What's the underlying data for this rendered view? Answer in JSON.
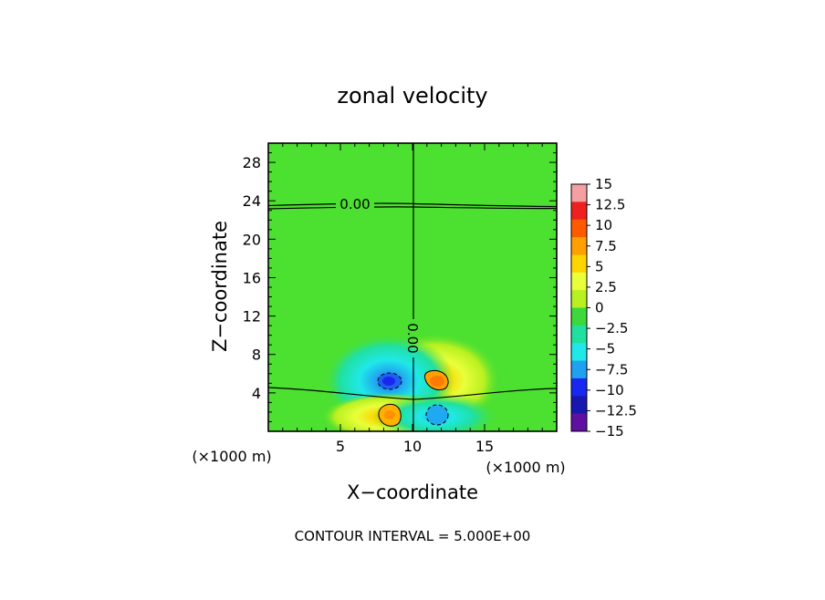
{
  "chart_data": {
    "type": "contour",
    "title": "zonal velocity",
    "xlabel": "X−coordinate",
    "ylabel": "Z−coordinate",
    "xunit_left": "(×1000 m)",
    "xunit_right": "(×1000 m)",
    "xlim": [
      0,
      20
    ],
    "ylim": [
      0,
      30
    ],
    "xticks": [
      5,
      10,
      15
    ],
    "xtick_labels": [
      "5",
      "10",
      "15"
    ],
    "yticks": [
      4,
      8,
      12,
      16,
      20,
      24,
      28
    ],
    "ytick_labels": [
      "4",
      "8",
      "12",
      "16",
      "20",
      "24",
      "28"
    ],
    "footer": "CONTOUR INTERVAL = 5.000E+00",
    "contour_interval": 5.0,
    "contour_labels": [
      {
        "text": "0.00",
        "x": 6.0,
        "y": 23.7,
        "rotation": 0
      },
      {
        "text": "0.00",
        "x": 10.0,
        "y": 9.9,
        "rotation": 90
      }
    ],
    "colorbar": {
      "labels": [
        "15",
        "12.5",
        "10",
        "7.5",
        "5",
        "2.5",
        "0",
        "−2.5",
        "−5",
        "−7.5",
        "−10",
        "−12.5",
        "−15"
      ],
      "levels": [
        15,
        12.5,
        10,
        7.5,
        5,
        2.5,
        0,
        -2.5,
        -5,
        -7.5,
        -10,
        -12.5,
        -15
      ],
      "colors": [
        "#f4a0a0",
        "#ee2020",
        "#ff5a00",
        "#ff9f00",
        "#ffd400",
        "#e8ff3a",
        "#b8f020",
        "#3cd83c",
        "#20e0a0",
        "#20e8e8",
        "#20a0f0",
        "#1828f0",
        "#1818b0",
        "#6010a0"
      ]
    },
    "background_color": "#4ce030",
    "features": [
      {
        "kind": "positive-core",
        "x": 11.6,
        "z": 5.4,
        "value": 8.5
      },
      {
        "kind": "negative-core",
        "x": 8.5,
        "z": 5.2,
        "value": -7.5
      },
      {
        "kind": "positive-core",
        "x": 8.6,
        "z": 1.9,
        "value": 7.5
      },
      {
        "kind": "negative-core",
        "x": 11.6,
        "z": 1.9,
        "value": -5.5
      }
    ]
  }
}
